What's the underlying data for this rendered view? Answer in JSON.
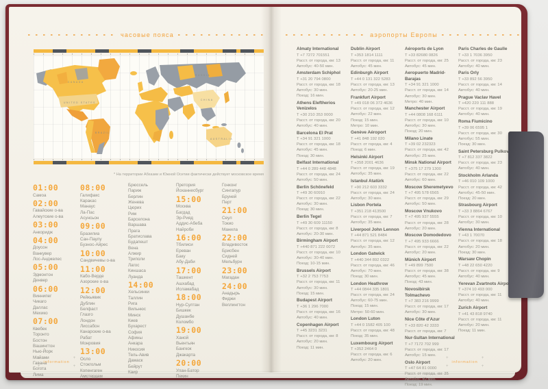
{
  "colors": {
    "accent_orange": "#f4a73b",
    "cover_maroon": "#6a2329",
    "page_cream": "#f4f1e8",
    "strap_grey": "#55555c",
    "map_yellow": "#f6c04a",
    "map_grey": "#99a0a8"
  },
  "left_page": {
    "title": "часовые пояса",
    "map_note": "* На территории Абхазии и Южной Осетии фактически действует московское время",
    "map_labels": [
      {
        "text": "CANADA"
      },
      {
        "text": "UNITED STATES"
      },
      {
        "text": "BRAZIL"
      },
      {
        "text": "RUSSIA"
      },
      {
        "text": "CHINA"
      },
      {
        "text": "AUSTRALIA"
      }
    ],
    "footer": "information",
    "columns": [
      {
        "blocks": [
          {
            "time": "01:00",
            "cities": [
              "Самоа"
            ]
          },
          {
            "time": "02:00",
            "cities": [
              "Гавайские о-ва",
              "Алеутские о-ва"
            ]
          },
          {
            "time": "03:00",
            "cities": [
              "Анкоридж"
            ]
          },
          {
            "time": "04:00",
            "cities": [
              "Доусон",
              "Ванкувер",
              "Лос-Анджелес"
            ]
          },
          {
            "time": "05:00",
            "cities": [
              "Эдмонтон",
              "Денвер"
            ]
          },
          {
            "time": "06:00",
            "cities": [
              "Виннипег",
              "Чикаго",
              "Даллас",
              "Мехико"
            ]
          },
          {
            "time": "07:00",
            "cities": [
              "Квебек",
              "Торонто",
              "Бостон",
              "Вашингтон",
              "Нью-Йорк",
              "Майами",
              "Гавана",
              "Богота",
              "Лима"
            ]
          }
        ]
      },
      {
        "blocks": [
          {
            "time": "08:00",
            "cities": [
              "Галифакс",
              "Каракас",
              "Манаус",
              "Ла-Пас",
              "Асунсьон"
            ]
          },
          {
            "time": "09:00",
            "cities": [
              "Бразилиа",
              "Сан-Паулу",
              "Буэнос-Айрес"
            ]
          },
          {
            "time": "10:00",
            "cities": [
              "Сандвичевы о-ва"
            ]
          },
          {
            "time": "11:00",
            "cities": [
              "Кабо-Верде",
              "Азорские о-ва"
            ]
          },
          {
            "time": "12:00",
            "cities": [
              "Рейкьявик",
              "Дублин",
              "Белфаст",
              "Глазго",
              "Лондон",
              "Лиссабон",
              "Канарские о-ва",
              "Рабат",
              "Монровия"
            ]
          },
          {
            "time": "13:00",
            "cities": [
              "Осло",
              "Стокгольм",
              "Копенгаген",
              "Амстердам"
            ]
          }
        ]
      },
      {
        "blocks": [
          {
            "time": null,
            "cities": [
              "Брюссель",
              "Париж",
              "Берлин",
              "Женева",
              "Цюрих",
              "Рим",
              "Барселона",
              "Варшава",
              "Прага",
              "Братислава",
              "Будапешт",
              "Вена",
              "Алжир",
              "Триполи",
              "Лагос",
              "Киншаса",
              "Луанда"
            ]
          },
          {
            "time": "14:00",
            "cities": [
              "Хельсинки",
              "Таллин",
              "Рига",
              "Вильнюс",
              "Минск",
              "Киев",
              "Бухарест",
              "София",
              "Афины",
              "Анкара",
              "Никосия",
              "Тель-Авив",
              "Дамаск",
              "Бейрут",
              "Каир"
            ]
          }
        ]
      },
      {
        "blocks": [
          {
            "time": null,
            "cities": [
              "Претория",
              "Йоханнесбург"
            ]
          },
          {
            "time": "15:00",
            "cities": [
              "Москва",
              "Багдад",
              "Эр-Рияд",
              "Аддис-Абеба",
              "Найроби"
            ]
          },
          {
            "time": "16:00",
            "cities": [
              "Тбилиси",
              "Ереван",
              "Баку",
              "Абу-Даби"
            ]
          },
          {
            "time": "17:00",
            "cities": [
              "Ташкент",
              "Ашхабад",
              "Исламабад"
            ]
          },
          {
            "time": "18:00",
            "cities": [
              "Нур-Султан",
              "Бишкек",
              "Душанбе",
              "Коломбо"
            ]
          },
          {
            "time": "19:00",
            "cities": [
              "Ханой",
              "Вьентьян",
              "Бангкок",
              "Джакарта"
            ]
          },
          {
            "time": "20:00",
            "cities": [
              "Улан-Батор",
              "Пекин"
            ]
          }
        ]
      },
      {
        "blocks": [
          {
            "time": null,
            "cities": [
              "Гонконг",
              "Сингапур",
              "Бруней",
              "Перт"
            ]
          },
          {
            "time": "21:00",
            "cities": [
              "Сеул",
              "Токио",
              "Манила"
            ]
          },
          {
            "time": "22:00",
            "cities": [
              "Владивосток",
              "Брисбен",
              "Сидней",
              "Мельбурн"
            ]
          },
          {
            "time": "23:00",
            "cities": [
              "Магадан"
            ]
          },
          {
            "time": "24:00",
            "cities": [
              "Анадырь",
              "Фиджи",
              "Веллингтон"
            ]
          }
        ]
      }
    ]
  },
  "right_page": {
    "title": "аэропорты Европы",
    "footer": "information",
    "columns": [
      [
        {
          "name": "Almaty International",
          "lines": [
            "Т +7 7272 701551",
            "Расст. от города, км: 13",
            "Автобус: 40-50 мин."
          ]
        },
        {
          "name": "Amsterdam Schiphol",
          "lines": [
            "Т +31 20 794 0800",
            "Расст. от города, км: 18",
            "Автобус: 30 мин.",
            "Поезд: 16 мин."
          ]
        },
        {
          "name": "Athens Eleftherios Venizelos",
          "lines": [
            "Т +30 210 353 0000",
            "Расст. от города, км: 20",
            "Автобус: 40 мин."
          ]
        },
        {
          "name": "Barcelona El Prat",
          "lines": [
            "Т +34 91 321 1000",
            "Расст. от города, км: 18",
            "Автобус: 45 мин.",
            "Поезд: 30 мин."
          ]
        },
        {
          "name": "Belfast International",
          "lines": [
            "Т +44 0 289 448 4848",
            "Расст. от города, км: 24",
            "Автобус: 50 мин."
          ]
        },
        {
          "name": "Berlin Schönefeld",
          "lines": [
            "Т +49 30 60910",
            "Расст. от города, км: 22",
            "Автобус: 30 мин.",
            "Поезд: 30 мин."
          ]
        },
        {
          "name": "Berlin Tegel",
          "lines": [
            "Т +49 30 609 11150",
            "Расст. от города, км: 8",
            "Автобус: 20-30 мин."
          ]
        },
        {
          "name": "Birmingham Airport",
          "lines": [
            "Т +440 871 222 0072",
            "Расст. от города, км: 10",
            "Автобус: 30-40 мин.",
            "Поезд: 10-15 мин."
          ]
        },
        {
          "name": "Brussels Airport",
          "lines": [
            "Т +32 2 753 7753",
            "Расст. от города, км: 11",
            "Автобус: 30 мин.",
            "Поезд: 15 мин."
          ]
        },
        {
          "name": "Budapest Airport",
          "lines": [
            "Т +36 1 296 7000",
            "Расст. от города, км: 16",
            "Автобус: 40 мин."
          ]
        },
        {
          "name": "Copenhagen Airport",
          "lines": [
            "Т +45 3231 3231",
            "Расст. от города, км: 8",
            "Автобус: 20 мин.",
            "Поезд: 11 мин."
          ]
        }
      ],
      [
        {
          "name": "Dublin Airport",
          "lines": [
            "Т +353 1814 1111",
            "Расст. от города, км: 11",
            "Автобус: 45 мин."
          ]
        },
        {
          "name": "Edinburgh Airport",
          "lines": [
            "Т +44 0 131 322 5283",
            "Расст. от города, км: 13",
            "Автобус: 20-25 мин."
          ]
        },
        {
          "name": "Frankfurt Airport",
          "lines": [
            "Т +49 018 06 372 4636",
            "Расст. от города, км: 12",
            "Автобус: 22 мин.",
            "Поезд: 15 мин.",
            "Метро: 10 мин."
          ]
        },
        {
          "name": "Genève Aéroport",
          "lines": [
            "Т +41 848 192 020",
            "Расст. от города, км: 4",
            "Поезд: 6 мин."
          ]
        },
        {
          "name": "Helsinki Airport",
          "lines": [
            "Т +358 2001 4636",
            "Расст. от города, км: 19",
            "Автобус: 35 мин."
          ]
        },
        {
          "name": "Istanbul Atatürk",
          "lines": [
            "Т +90 212 603 3332",
            "Расст. от города, км: 24",
            "Автобус: 30 мин."
          ]
        },
        {
          "name": "Lisbon Portela",
          "lines": [
            "Т +351 218 413500",
            "Расст. от города, км: 7",
            "Автобус: 35 мин."
          ]
        },
        {
          "name": "Liverpool John Lennon",
          "lines": [
            "Т +44 871 521 8484",
            "Расст. от города, км: 12",
            "Автобус: 35 мин."
          ]
        },
        {
          "name": "London Gatwick",
          "lines": [
            "Т +440 344 892 0322",
            "Расст. от города, км: 46",
            "Автобус: 70 мин.",
            "Поезд: 30 мин."
          ]
        },
        {
          "name": "London Heathrow",
          "lines": [
            "Т +44 0844 335 1801",
            "Расст. от города, км: 24",
            "Автобус: 60-75 мин.",
            "Поезд: 15 мин.",
            "Метро: 50-60 мин."
          ]
        },
        {
          "name": "London Luton",
          "lines": [
            "Т +44 0 1582 405 100",
            "Расст. от города, км: 48",
            "Поезд: 35 мин."
          ]
        },
        {
          "name": "Luxembourg Airport",
          "lines": [
            "Т +352 2464 0",
            "Расст. от города, км: 6",
            "Автобус: 20 мин."
          ]
        }
      ],
      [
        {
          "name": "Aéroports de Lyon",
          "lines": [
            "Т +33 82680 0826",
            "Расст. от города, км: 25",
            "Автобус: 45 мин."
          ]
        },
        {
          "name": "Aeropuerto Madrid-Barajas",
          "lines": [
            "Т +34 91 321 1000",
            "Расст. от города, км: 14",
            "Автобус: 30 мин.",
            "Метро: 40 мин."
          ]
        },
        {
          "name": "Manchester Airport",
          "lines": [
            "Т +44 0808 168 6111",
            "Расст. от города, км: 10",
            "Автобус: 30 мин.",
            "Поезд: 20 мин."
          ]
        },
        {
          "name": "Milano Linate",
          "lines": [
            "Т +39 02 232323",
            "Расст. от города, км: 42",
            "Автобус: 25 мин."
          ]
        },
        {
          "name": "Minsk National Airport",
          "lines": [
            "Т +375 17 279 1300",
            "Расст. от города, км: 22",
            "Автобус: 60 мин."
          ]
        },
        {
          "name": "Moscow Sheremetyevo",
          "lines": [
            "Т +7 495 578 6565",
            "Расст. от города, км: 29",
            "Автобус: 50 мин."
          ]
        },
        {
          "name": "Moscow Vnukovo",
          "lines": [
            "Т +7 495 937 5555",
            "Расст. от города, км: 28",
            "Автобус: 20 мин."
          ]
        },
        {
          "name": "Moscow Domodedovo",
          "lines": [
            "Т +7 495 933 6666",
            "Расст. от города, км: 22",
            "Автобус: 20 мин."
          ]
        },
        {
          "name": "Münich Airport",
          "lines": [
            "Т +49 899 7500",
            "Расст. от города, км: 38",
            "Автобус: 45 мин.",
            "Поезд: 43 мин."
          ]
        },
        {
          "name": "Novosibirsk Tolmachevo",
          "lines": [
            "Т +7 383 216 9999",
            "Расст. от города, км: 17",
            "Автобус: 30 мин."
          ]
        },
        {
          "name": "Nice Côte d'Azur",
          "lines": [
            "Т +33 820 42 3333",
            "Расст. от города, км: 7"
          ]
        },
        {
          "name": "Nur-Sultan International",
          "lines": [
            "Т +7 7172 702 999",
            "Расст. от города, км: 17",
            "Автобус: 15 мин."
          ]
        },
        {
          "name": "Oslo Airport",
          "lines": [
            "Т +47 64 81 0000",
            "Расст. от города, км: 35",
            "Автобус: 40 мин.",
            "Поезд: 19 мин."
          ]
        }
      ],
      [
        {
          "name": "Paris Charles de Gaulle",
          "lines": [
            "Т +33 1 7036 3950",
            "Расст. от города, км: 23",
            "Автобус: 40 мин."
          ]
        },
        {
          "name": "Paris Orly",
          "lines": [
            "Т +33 892 56 3950",
            "Расст. от города, км: 14",
            "Автобус: 40 мин."
          ]
        },
        {
          "name": "Prague Vaclav Havel",
          "lines": [
            "Т +420 220 111 888",
            "Расст. от города, км: 19",
            "Автобус: 40 мин."
          ]
        },
        {
          "name": "Roma Fiumicino",
          "lines": [
            "Т +39 06 6595 1",
            "Расст. от города, км: 30",
            "Автобус: 55 мин.",
            "Поезд: 30 мин."
          ]
        },
        {
          "name": "Saint Petersburg Pulkovo",
          "lines": [
            "Т +7 812 337 3822",
            "Расст. от города, км: 23",
            "Автобус: 40 мин."
          ]
        },
        {
          "name": "Stockholm Arlanda",
          "lines": [
            "Т +46 010 109 1000",
            "Расст. от города, км: 42",
            "Автобус: 45-50 мин.",
            "Поезд: 20 мин."
          ]
        },
        {
          "name": "Strasbourg Airport",
          "lines": [
            "Т +33 3 8864 6767",
            "Расст. от города, км: 10",
            "Автобус: 30 мин."
          ]
        },
        {
          "name": "Vienna International",
          "lines": [
            "Т +43 1 70070",
            "Расст. от города, км: 18",
            "Автобус: 20 мин.",
            "Поезд: 30 мин."
          ]
        },
        {
          "name": "Warsaw Chopin",
          "lines": [
            "Т +48 22 650 4220",
            "Расст. от города, км: 9",
            "Автобус: 40 мин."
          ]
        },
        {
          "name": "Yerevan Zvartnots Airport",
          "lines": [
            "Т +374 10 493 000",
            "Расст. от города, км: 11",
            "Автобус: 40 мин."
          ]
        },
        {
          "name": "Zurich Airport",
          "lines": [
            "Т +41 43 818 9740",
            "Расст. от города, км: 11",
            "Автобус: 20 мин.",
            "Поезд: 11 мин."
          ]
        }
      ]
    ]
  }
}
